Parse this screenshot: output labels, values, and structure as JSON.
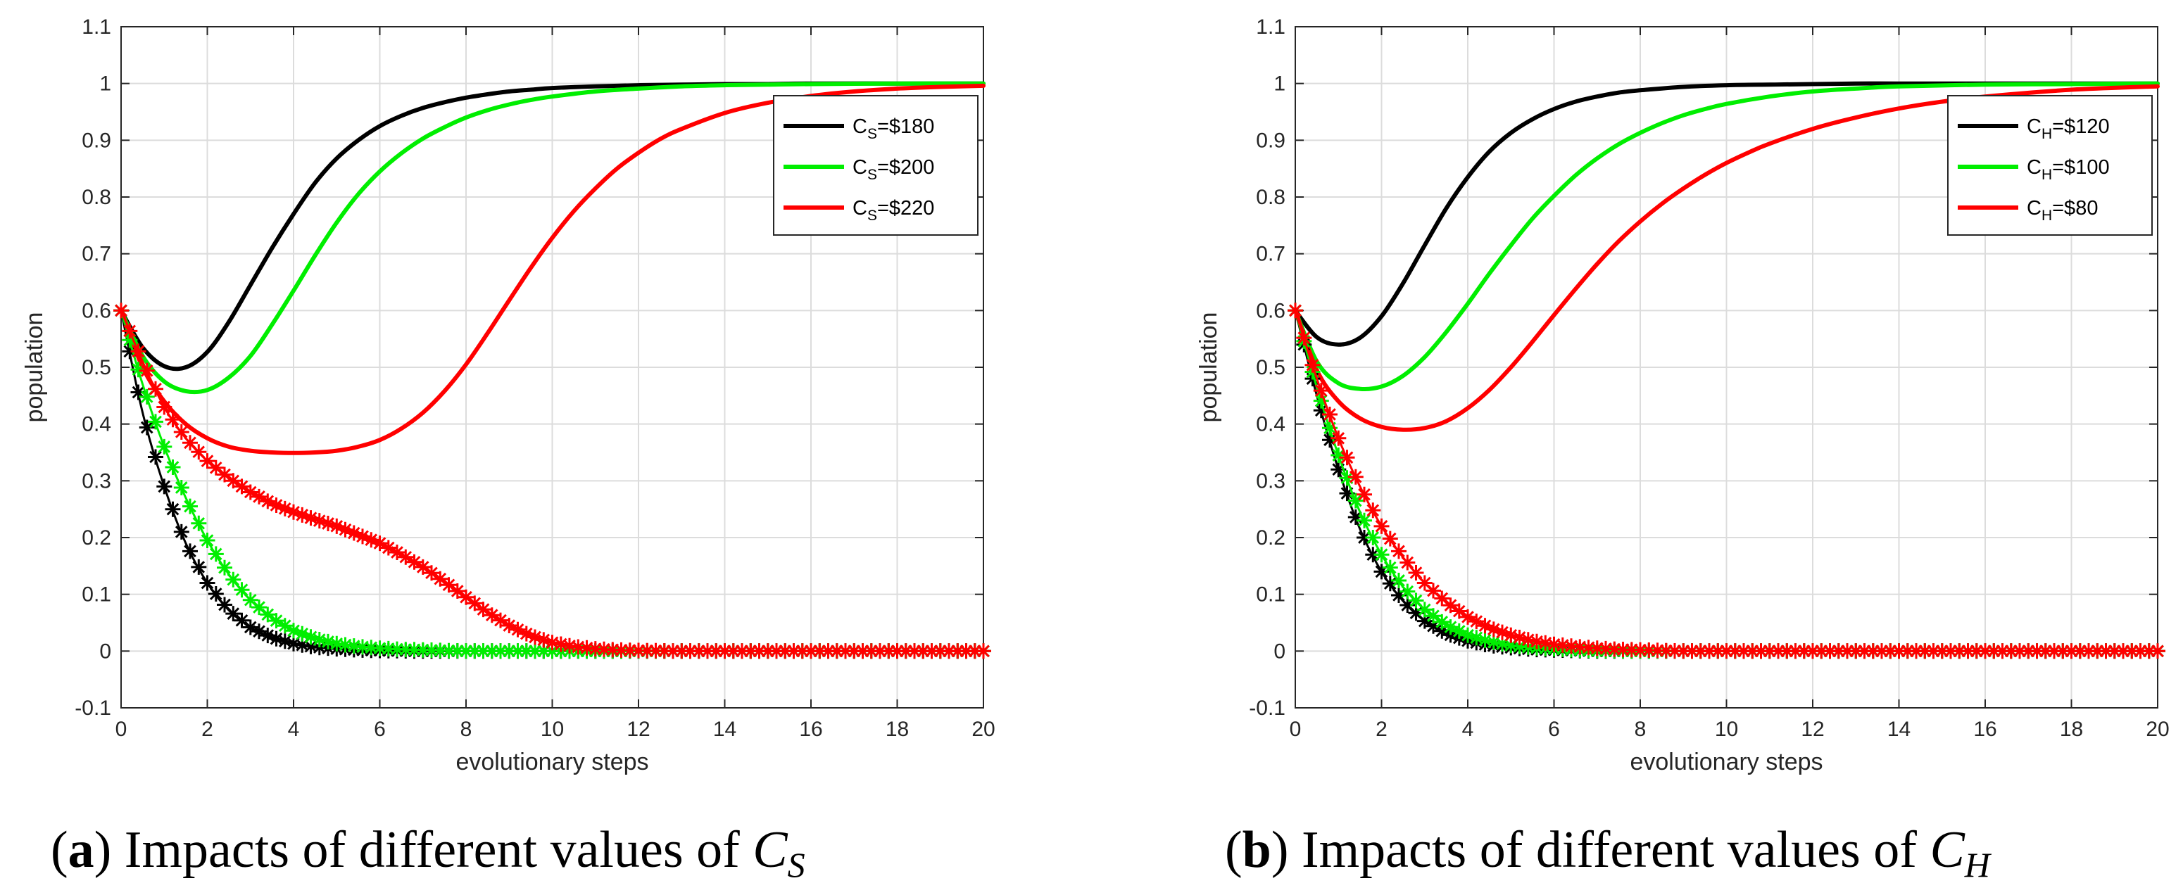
{
  "chart_data": [
    {
      "type": "line",
      "panel": "a",
      "caption": {
        "letter": "a",
        "text": "Impacts of different values of",
        "var": "C",
        "sub": "S"
      },
      "xlabel": "evolutionary steps",
      "ylabel": "population",
      "xlim": [
        0,
        20
      ],
      "ylim": [
        -0.1,
        1.1
      ],
      "xticks": [
        0,
        2,
        4,
        6,
        8,
        10,
        12,
        14,
        16,
        18,
        20
      ],
      "yticks": [
        -0.1,
        0,
        0.1,
        0.2,
        0.3,
        0.4,
        0.5,
        0.6,
        0.7,
        0.8,
        0.9,
        1,
        1.1
      ],
      "grid": true,
      "legend_position": "upper-right",
      "series": [
        {
          "name": "C_S=$180",
          "legend_main": "C",
          "legend_sub": "S",
          "legend_value": "=$180",
          "color": "#000000",
          "style": "solid",
          "x": [
            0,
            0.5,
            1,
            1.5,
            2,
            2.5,
            3,
            3.5,
            4,
            4.5,
            5,
            5.5,
            6,
            6.5,
            7,
            7.5,
            8,
            8.5,
            9,
            9.5,
            10,
            11,
            12,
            13,
            14,
            15,
            16,
            18,
            20
          ],
          "y": [
            0.6,
            0.535,
            0.502,
            0.5,
            0.527,
            0.58,
            0.645,
            0.71,
            0.77,
            0.825,
            0.868,
            0.9,
            0.925,
            0.943,
            0.957,
            0.967,
            0.975,
            0.981,
            0.986,
            0.989,
            0.992,
            0.995,
            0.997,
            0.998,
            0.999,
            0.999,
            1.0,
            1.0,
            1.0
          ]
        },
        {
          "name": "C_S=$200",
          "legend_main": "C",
          "legend_sub": "S",
          "legend_value": "=$200",
          "color": "#00ee00",
          "style": "solid",
          "x": [
            0,
            0.5,
            1,
            1.5,
            2,
            2.5,
            3,
            3.5,
            4,
            4.5,
            5,
            5.5,
            6,
            6.5,
            7,
            7.5,
            8,
            8.5,
            9,
            9.5,
            10,
            11,
            12,
            13,
            14,
            15,
            16,
            18,
            20
          ],
          "y": [
            0.6,
            0.52,
            0.475,
            0.458,
            0.46,
            0.482,
            0.52,
            0.575,
            0.635,
            0.697,
            0.755,
            0.805,
            0.845,
            0.877,
            0.903,
            0.923,
            0.94,
            0.953,
            0.963,
            0.971,
            0.977,
            0.986,
            0.991,
            0.995,
            0.997,
            0.998,
            0.999,
            1.0,
            1.0
          ]
        },
        {
          "name": "C_S=$220",
          "legend_main": "C",
          "legend_sub": "S",
          "legend_value": "=$220",
          "color": "#ff0000",
          "style": "solid",
          "x": [
            0,
            0.5,
            1,
            1.5,
            2,
            2.5,
            3,
            3.5,
            4,
            4.5,
            5,
            5.5,
            6,
            6.5,
            7,
            7.5,
            8,
            8.5,
            9,
            9.5,
            10,
            10.5,
            11,
            11.5,
            12,
            12.5,
            13,
            14,
            15,
            16,
            17,
            18,
            19,
            20
          ],
          "y": [
            0.6,
            0.5,
            0.44,
            0.4,
            0.375,
            0.36,
            0.353,
            0.35,
            0.349,
            0.35,
            0.353,
            0.36,
            0.372,
            0.392,
            0.42,
            0.458,
            0.505,
            0.56,
            0.618,
            0.675,
            0.728,
            0.775,
            0.815,
            0.85,
            0.878,
            0.902,
            0.92,
            0.948,
            0.966,
            0.978,
            0.986,
            0.991,
            0.994,
            0.996
          ]
        },
        {
          "name": "C_S=$180 (starred)",
          "color": "#000000",
          "style": "star",
          "x": [
            0,
            0.5,
            1,
            1.5,
            2,
            2.5,
            3,
            3.5,
            4,
            4.5,
            5,
            5.5,
            6,
            7,
            8,
            10,
            12,
            14,
            16,
            18,
            20
          ],
          "y": [
            0.6,
            0.42,
            0.29,
            0.19,
            0.12,
            0.072,
            0.042,
            0.024,
            0.013,
            0.007,
            0.004,
            0.002,
            0.001,
            0.0,
            0.0,
            0.0,
            0.0,
            0.0,
            0.0,
            0.0,
            0.0
          ]
        },
        {
          "name": "C_S=$200 (starred)",
          "color": "#00ee00",
          "style": "star",
          "x": [
            0,
            0.5,
            1,
            1.5,
            2,
            2.5,
            3,
            3.5,
            4,
            4.5,
            5,
            5.5,
            6,
            6.5,
            7,
            8,
            10,
            12,
            14,
            16,
            18,
            20
          ],
          "y": [
            0.6,
            0.47,
            0.36,
            0.27,
            0.195,
            0.135,
            0.09,
            0.058,
            0.036,
            0.022,
            0.013,
            0.008,
            0.005,
            0.003,
            0.002,
            0.0,
            0.0,
            0.0,
            0.0,
            0.0,
            0.0,
            0.0
          ]
        },
        {
          "name": "C_S=$220 (starred)",
          "color": "#ff0000",
          "style": "star",
          "x": [
            0,
            0.5,
            1,
            1.5,
            2,
            2.5,
            3,
            3.5,
            4,
            4.5,
            5,
            5.5,
            6,
            6.5,
            7,
            7.5,
            8,
            8.5,
            9,
            9.5,
            10,
            10.5,
            11,
            11.5,
            12,
            13,
            14,
            16,
            18,
            20
          ],
          "y": [
            0.6,
            0.51,
            0.43,
            0.375,
            0.335,
            0.305,
            0.28,
            0.26,
            0.245,
            0.232,
            0.22,
            0.205,
            0.19,
            0.17,
            0.148,
            0.122,
            0.095,
            0.068,
            0.045,
            0.027,
            0.015,
            0.008,
            0.004,
            0.002,
            0.001,
            0.0,
            0.0,
            0.0,
            0.0,
            0.0
          ]
        }
      ]
    },
    {
      "type": "line",
      "panel": "b",
      "caption": {
        "letter": "b",
        "text": "Impacts of different values of",
        "var": "C",
        "sub": "H"
      },
      "xlabel": "evolutionary steps",
      "ylabel": "population",
      "xlim": [
        0,
        20
      ],
      "ylim": [
        -0.1,
        1.1
      ],
      "xticks": [
        0,
        2,
        4,
        6,
        8,
        10,
        12,
        14,
        16,
        18,
        20
      ],
      "yticks": [
        -0.1,
        0,
        0.1,
        0.2,
        0.3,
        0.4,
        0.5,
        0.6,
        0.7,
        0.8,
        0.9,
        1,
        1.1
      ],
      "grid": true,
      "legend_position": "upper-right",
      "series": [
        {
          "name": "C_H=$120",
          "legend_main": "C",
          "legend_sub": "H",
          "legend_value": "=$120",
          "color": "#000000",
          "style": "solid",
          "x": [
            0,
            0.5,
            1,
            1.5,
            2,
            2.5,
            3,
            3.5,
            4,
            4.5,
            5,
            5.5,
            6,
            6.5,
            7,
            7.5,
            8,
            9,
            10,
            11,
            12,
            13,
            14,
            16,
            18,
            20
          ],
          "y": [
            0.6,
            0.553,
            0.54,
            0.552,
            0.59,
            0.648,
            0.715,
            0.78,
            0.835,
            0.88,
            0.913,
            0.937,
            0.955,
            0.968,
            0.977,
            0.984,
            0.988,
            0.994,
            0.997,
            0.998,
            0.999,
            1.0,
            1.0,
            1.0,
            1.0,
            1.0
          ]
        },
        {
          "name": "C_H=$100",
          "legend_main": "C",
          "legend_sub": "H",
          "legend_value": "=$100",
          "color": "#00ee00",
          "style": "solid",
          "x": [
            0,
            0.5,
            1,
            1.5,
            2,
            2.5,
            3,
            3.5,
            4,
            4.5,
            5,
            5.5,
            6,
            6.5,
            7,
            7.5,
            8,
            8.5,
            9,
            9.5,
            10,
            11,
            12,
            13,
            14,
            16,
            18,
            20
          ],
          "y": [
            0.6,
            0.51,
            0.472,
            0.462,
            0.466,
            0.485,
            0.518,
            0.562,
            0.612,
            0.665,
            0.715,
            0.762,
            0.802,
            0.838,
            0.868,
            0.893,
            0.913,
            0.93,
            0.944,
            0.955,
            0.964,
            0.977,
            0.986,
            0.991,
            0.995,
            0.998,
            0.999,
            1.0
          ]
        },
        {
          "name": "C_H=$80",
          "legend_main": "C",
          "legend_sub": "H",
          "legend_value": "=$80",
          "color": "#ff0000",
          "style": "solid",
          "x": [
            0,
            0.5,
            1,
            1.5,
            2,
            2.5,
            3,
            3.5,
            4,
            4.5,
            5,
            5.5,
            6,
            6.5,
            7,
            7.5,
            8,
            8.5,
            9,
            9.5,
            10,
            10.5,
            11,
            12,
            13,
            14,
            15,
            16,
            18,
            20
          ],
          "y": [
            0.6,
            0.495,
            0.44,
            0.41,
            0.395,
            0.39,
            0.393,
            0.405,
            0.428,
            0.46,
            0.5,
            0.545,
            0.592,
            0.638,
            0.682,
            0.722,
            0.757,
            0.788,
            0.815,
            0.839,
            0.86,
            0.878,
            0.894,
            0.92,
            0.94,
            0.956,
            0.968,
            0.977,
            0.989,
            0.995
          ]
        },
        {
          "name": "C_H=$120 (starred)",
          "color": "#000000",
          "style": "star",
          "x": [
            0,
            0.5,
            1,
            1.5,
            2,
            2.5,
            3,
            3.5,
            4,
            4.5,
            5,
            5.5,
            6,
            7,
            8,
            10,
            12,
            14,
            16,
            18,
            20
          ],
          "y": [
            0.6,
            0.45,
            0.32,
            0.215,
            0.14,
            0.088,
            0.053,
            0.031,
            0.018,
            0.01,
            0.006,
            0.003,
            0.002,
            0.0,
            0.0,
            0.0,
            0.0,
            0.0,
            0.0,
            0.0,
            0.0
          ]
        },
        {
          "name": "C_H=$100 (starred)",
          "color": "#00ee00",
          "style": "star",
          "x": [
            0,
            0.5,
            1,
            1.5,
            2,
            2.5,
            3,
            3.5,
            4,
            4.5,
            5,
            5.5,
            6,
            6.5,
            7,
            8,
            10,
            12,
            14,
            16,
            18,
            20
          ],
          "y": [
            0.6,
            0.465,
            0.345,
            0.245,
            0.17,
            0.113,
            0.073,
            0.046,
            0.028,
            0.017,
            0.01,
            0.006,
            0.004,
            0.002,
            0.001,
            0.0,
            0.0,
            0.0,
            0.0,
            0.0,
            0.0,
            0.0
          ]
        },
        {
          "name": "C_H=$80 (starred)",
          "color": "#ff0000",
          "style": "star",
          "x": [
            0,
            0.5,
            1,
            1.5,
            2,
            2.5,
            3,
            3.5,
            4,
            4.5,
            5,
            5.5,
            6,
            6.5,
            7,
            7.5,
            8,
            9,
            10,
            12,
            14,
            16,
            18,
            20
          ],
          "y": [
            0.6,
            0.48,
            0.375,
            0.29,
            0.22,
            0.165,
            0.12,
            0.086,
            0.06,
            0.041,
            0.028,
            0.018,
            0.012,
            0.008,
            0.005,
            0.003,
            0.002,
            0.0,
            0.0,
            0.0,
            0.0,
            0.0,
            0.0,
            0.0
          ]
        }
      ]
    }
  ]
}
